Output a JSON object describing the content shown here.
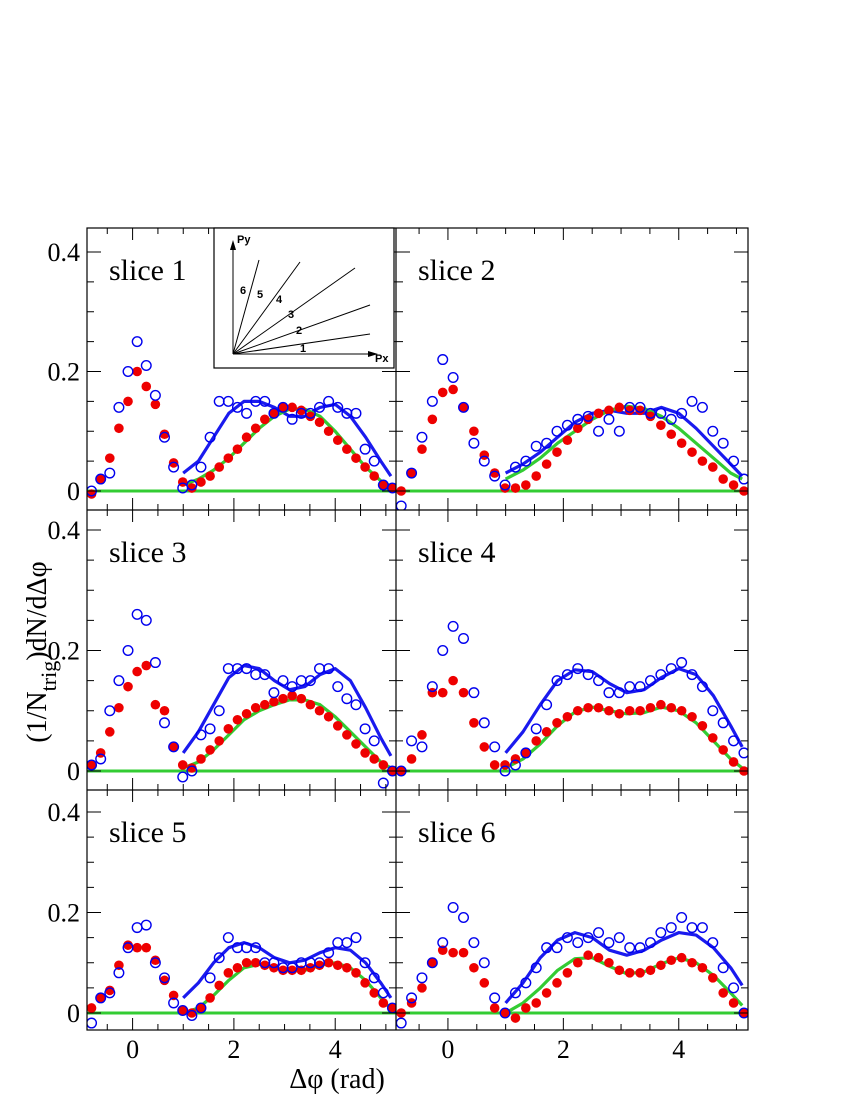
{
  "chart_data": {
    "type": "scatter",
    "layout": "3 rows x 2 columns of panels sharing axes",
    "xlabel": "Δφ (rad)",
    "ylabel_parts": {
      "pre": "(1/N",
      "sub": "trig",
      "post": ")dN/dΔφ"
    },
    "xlim": [
      -0.9,
      5.2
    ],
    "ylim": [
      -0.035,
      0.43
    ],
    "xticks": [
      0,
      2,
      4
    ],
    "yticks": [
      0,
      0.2,
      0.4
    ],
    "ytick_labels": [
      "0",
      "0.2",
      "0.4"
    ],
    "xtick_labels": [
      "0",
      "2",
      "4"
    ],
    "colors": {
      "open_markers": "#0000ee",
      "filled_markers": "#ee0000",
      "blue_curve": "#1a1aee",
      "green_curve": "#33cc33"
    },
    "inset": {
      "y_label": "Py",
      "x_label": "Px",
      "ray_labels": [
        "1",
        "2",
        "3",
        "4",
        "5",
        "6"
      ]
    },
    "x": [
      -0.81,
      -0.63,
      -0.45,
      -0.27,
      -0.09,
      0.09,
      0.27,
      0.45,
      0.63,
      0.81,
      0.99,
      1.17,
      1.35,
      1.53,
      1.71,
      1.89,
      2.07,
      2.25,
      2.43,
      2.61,
      2.79,
      2.97,
      3.15,
      3.33,
      3.51,
      3.69,
      3.87,
      4.05,
      4.23,
      4.41,
      4.59,
      4.77,
      4.95,
      5.13
    ],
    "panels": [
      {
        "label": "slice 1",
        "open": [
          0.0,
          0.02,
          0.03,
          0.14,
          0.2,
          0.25,
          0.21,
          0.16,
          0.09,
          0.04,
          0.005,
          0.01,
          0.04,
          0.09,
          0.15,
          0.15,
          0.14,
          0.13,
          0.15,
          0.15,
          0.13,
          0.14,
          0.12,
          0.13,
          0.13,
          0.14,
          0.15,
          0.14,
          0.13,
          0.13,
          0.07,
          0.05,
          0.01,
          0.005
        ],
        "filled": [
          -0.005,
          0.02,
          0.055,
          0.105,
          0.15,
          0.2,
          0.175,
          0.145,
          0.095,
          0.047,
          0.015,
          0.005,
          0.015,
          0.025,
          0.04,
          0.055,
          0.07,
          0.09,
          0.105,
          0.12,
          0.13,
          0.14,
          0.14,
          0.135,
          0.125,
          0.115,
          0.1,
          0.085,
          0.07,
          0.055,
          0.04,
          0.025,
          0.01,
          0.005
        ],
        "blue_curve": {
          "x": [
            1.0,
            1.3,
            1.6,
            1.9,
            2.2,
            2.5,
            2.8,
            3.1,
            3.4,
            3.7,
            4.0,
            4.3,
            4.6,
            4.9,
            5.1
          ],
          "y": [
            0.03,
            0.05,
            0.09,
            0.13,
            0.15,
            0.15,
            0.14,
            0.125,
            0.125,
            0.14,
            0.145,
            0.125,
            0.09,
            0.05,
            0.025
          ]
        },
        "green_curve": {
          "x": [
            1.0,
            1.3,
            1.6,
            1.9,
            2.2,
            2.5,
            2.8,
            3.1,
            3.4,
            3.7,
            4.0,
            4.3,
            4.6,
            4.9,
            5.1
          ],
          "y": [
            0.01,
            0.02,
            0.035,
            0.055,
            0.08,
            0.105,
            0.125,
            0.137,
            0.137,
            0.125,
            0.1,
            0.07,
            0.04,
            0.017,
            0.008
          ]
        }
      },
      {
        "label": "slice 2",
        "open": [
          -0.025,
          0.03,
          0.09,
          0.15,
          0.22,
          0.19,
          0.14,
          0.08,
          0.05,
          0.025,
          0.01,
          0.04,
          0.05,
          0.075,
          0.08,
          0.1,
          0.11,
          0.12,
          0.125,
          0.1,
          0.12,
          0.1,
          0.14,
          0.14,
          0.13,
          0.13,
          0.12,
          0.13,
          0.15,
          0.14,
          0.1,
          0.08,
          0.05,
          0.02
        ],
        "filled": [
          0.0,
          0.03,
          0.07,
          0.12,
          0.165,
          0.17,
          0.14,
          0.1,
          0.06,
          0.03,
          0.005,
          0.005,
          0.01,
          0.025,
          0.045,
          0.065,
          0.085,
          0.105,
          0.12,
          0.13,
          0.135,
          0.14,
          0.135,
          0.135,
          0.125,
          0.11,
          0.095,
          0.08,
          0.065,
          0.05,
          0.04,
          0.02,
          0.01,
          0.0
        ],
        "blue_curve": {
          "x": [
            1.0,
            1.3,
            1.6,
            1.9,
            2.2,
            2.5,
            2.8,
            3.1,
            3.4,
            3.7,
            4.0,
            4.3,
            4.6,
            4.9,
            5.1
          ],
          "y": [
            0.03,
            0.045,
            0.065,
            0.09,
            0.115,
            0.13,
            0.135,
            0.13,
            0.13,
            0.14,
            0.13,
            0.105,
            0.075,
            0.045,
            0.025
          ]
        },
        "green_curve": {
          "x": [
            1.0,
            1.3,
            1.6,
            1.9,
            2.2,
            2.5,
            2.8,
            3.1,
            3.4,
            3.7,
            4.0,
            4.3,
            4.6,
            4.9,
            5.1
          ],
          "y": [
            0.02,
            0.035,
            0.055,
            0.08,
            0.1,
            0.12,
            0.135,
            0.142,
            0.138,
            0.125,
            0.105,
            0.08,
            0.055,
            0.03,
            0.02
          ]
        }
      },
      {
        "label": "slice 3",
        "open": [
          0.01,
          0.02,
          0.1,
          0.15,
          0.2,
          0.26,
          0.25,
          0.18,
          0.08,
          0.04,
          -0.01,
          0.0,
          0.06,
          0.07,
          0.1,
          0.17,
          0.17,
          0.17,
          0.16,
          0.16,
          0.13,
          0.15,
          0.14,
          0.15,
          0.15,
          0.17,
          0.17,
          0.14,
          0.12,
          0.11,
          0.07,
          0.05,
          -0.02,
          0.0
        ],
        "filled": [
          0.01,
          0.03,
          0.065,
          0.105,
          0.14,
          0.165,
          0.175,
          0.11,
          0.1,
          0.04,
          0.01,
          0.005,
          0.02,
          0.035,
          0.05,
          0.07,
          0.085,
          0.095,
          0.105,
          0.11,
          0.115,
          0.12,
          0.125,
          0.12,
          0.11,
          0.1,
          0.09,
          0.075,
          0.06,
          0.045,
          0.03,
          0.02,
          0.01,
          0.0
        ],
        "blue_curve": {
          "x": [
            1.0,
            1.3,
            1.6,
            1.9,
            2.2,
            2.5,
            2.8,
            3.1,
            3.4,
            3.7,
            4.0,
            4.3,
            4.6,
            4.9,
            5.1
          ],
          "y": [
            0.03,
            0.065,
            0.11,
            0.155,
            0.175,
            0.17,
            0.15,
            0.135,
            0.14,
            0.16,
            0.17,
            0.15,
            0.105,
            0.055,
            0.025
          ]
        },
        "green_curve": {
          "x": [
            1.0,
            1.3,
            1.6,
            1.9,
            2.2,
            2.5,
            2.8,
            3.1,
            3.4,
            3.7,
            4.0,
            4.3,
            4.6,
            4.9,
            5.1
          ],
          "y": [
            0.005,
            0.015,
            0.035,
            0.06,
            0.085,
            0.1,
            0.11,
            0.118,
            0.118,
            0.11,
            0.09,
            0.065,
            0.04,
            0.015,
            0.005
          ]
        }
      },
      {
        "label": "slice 4",
        "open": [
          0.0,
          0.05,
          0.04,
          0.14,
          0.2,
          0.24,
          0.22,
          0.13,
          0.08,
          0.04,
          0.0,
          0.01,
          0.03,
          0.07,
          0.11,
          0.15,
          0.16,
          0.17,
          0.16,
          0.15,
          0.13,
          0.13,
          0.14,
          0.14,
          0.15,
          0.16,
          0.17,
          0.18,
          0.16,
          0.14,
          0.1,
          0.08,
          0.05,
          0.03
        ],
        "filled": [
          0.0,
          0.02,
          0.06,
          0.13,
          0.13,
          0.15,
          0.13,
          0.08,
          0.04,
          0.01,
          0.01,
          0.02,
          0.03,
          0.05,
          0.065,
          0.08,
          0.09,
          0.1,
          0.105,
          0.105,
          0.1,
          0.095,
          0.1,
          0.1,
          0.105,
          0.11,
          0.105,
          0.1,
          0.09,
          0.075,
          0.055,
          0.035,
          0.015,
          0.0
        ],
        "blue_curve": {
          "x": [
            1.0,
            1.3,
            1.6,
            1.9,
            2.2,
            2.5,
            2.8,
            3.1,
            3.4,
            3.7,
            4.0,
            4.3,
            4.6,
            4.9,
            5.1
          ],
          "y": [
            0.03,
            0.065,
            0.11,
            0.15,
            0.168,
            0.165,
            0.145,
            0.13,
            0.135,
            0.155,
            0.17,
            0.16,
            0.125,
            0.075,
            0.04
          ]
        },
        "green_curve": {
          "x": [
            1.0,
            1.3,
            1.6,
            1.9,
            2.2,
            2.5,
            2.8,
            3.1,
            3.4,
            3.7,
            4.0,
            4.3,
            4.6,
            4.9,
            5.1
          ],
          "y": [
            0.005,
            0.02,
            0.045,
            0.075,
            0.098,
            0.106,
            0.1,
            0.095,
            0.097,
            0.106,
            0.1,
            0.08,
            0.05,
            0.02,
            0.005
          ]
        }
      },
      {
        "label": "slice 5",
        "open": [
          -0.02,
          0.03,
          0.04,
          0.08,
          0.13,
          0.17,
          0.175,
          0.1,
          0.07,
          0.02,
          0.005,
          -0.005,
          0.01,
          0.07,
          0.11,
          0.15,
          0.13,
          0.13,
          0.13,
          0.1,
          0.1,
          0.09,
          0.09,
          0.1,
          0.1,
          0.1,
          0.12,
          0.14,
          0.14,
          0.15,
          0.1,
          0.07,
          0.04,
          0.01
        ],
        "filled": [
          0.01,
          0.03,
          0.045,
          0.095,
          0.135,
          0.13,
          0.13,
          0.105,
          0.065,
          0.035,
          0.005,
          0.0,
          0.01,
          0.03,
          0.055,
          0.08,
          0.09,
          0.1,
          0.1,
          0.095,
          0.09,
          0.085,
          0.085,
          0.085,
          0.09,
          0.095,
          0.1,
          0.095,
          0.09,
          0.08,
          0.06,
          0.04,
          0.02,
          0.01
        ],
        "blue_curve": {
          "x": [
            1.0,
            1.3,
            1.6,
            1.9,
            2.2,
            2.5,
            2.8,
            3.1,
            3.4,
            3.7,
            4.0,
            4.3,
            4.6,
            4.9,
            5.1
          ],
          "y": [
            0.03,
            0.06,
            0.1,
            0.13,
            0.14,
            0.13,
            0.11,
            0.1,
            0.105,
            0.12,
            0.13,
            0.125,
            0.1,
            0.06,
            0.03
          ]
        },
        "green_curve": {
          "x": [
            1.0,
            1.3,
            1.6,
            1.9,
            2.2,
            2.5,
            2.8,
            3.1,
            3.4,
            3.7,
            4.0,
            4.3,
            4.6,
            4.9,
            5.1
          ],
          "y": [
            0.0,
            0.01,
            0.035,
            0.065,
            0.09,
            0.097,
            0.09,
            0.083,
            0.085,
            0.095,
            0.1,
            0.09,
            0.065,
            0.03,
            0.008
          ]
        }
      },
      {
        "label": "slice 6",
        "open": [
          -0.02,
          0.03,
          0.07,
          0.1,
          0.14,
          0.21,
          0.19,
          0.14,
          0.1,
          0.03,
          0.0,
          0.04,
          0.06,
          0.09,
          0.13,
          0.13,
          0.15,
          0.14,
          0.15,
          0.16,
          0.14,
          0.15,
          0.13,
          0.13,
          0.14,
          0.16,
          0.17,
          0.19,
          0.17,
          0.17,
          0.14,
          0.09,
          0.05,
          0.0
        ],
        "filled": [
          0.0,
          0.02,
          0.05,
          0.1,
          0.125,
          0.12,
          0.12,
          0.09,
          0.06,
          0.01,
          0.0,
          -0.01,
          0.01,
          0.02,
          0.04,
          0.06,
          0.08,
          0.1,
          0.115,
          0.11,
          0.1,
          0.085,
          0.08,
          0.08,
          0.085,
          0.095,
          0.105,
          0.11,
          0.1,
          0.09,
          0.07,
          0.04,
          0.02,
          0.0
        ],
        "blue_curve": {
          "x": [
            1.0,
            1.3,
            1.6,
            1.9,
            2.2,
            2.5,
            2.8,
            3.1,
            3.4,
            3.7,
            4.0,
            4.3,
            4.6,
            4.9,
            5.1
          ],
          "y": [
            0.02,
            0.06,
            0.11,
            0.145,
            0.16,
            0.15,
            0.125,
            0.115,
            0.125,
            0.145,
            0.16,
            0.155,
            0.13,
            0.09,
            0.055
          ]
        },
        "green_curve": {
          "x": [
            1.0,
            1.3,
            1.6,
            1.9,
            2.2,
            2.5,
            2.8,
            3.1,
            3.4,
            3.7,
            4.0,
            4.3,
            4.6,
            4.9,
            5.1
          ],
          "y": [
            0.0,
            0.02,
            0.05,
            0.085,
            0.108,
            0.11,
            0.093,
            0.078,
            0.082,
            0.098,
            0.11,
            0.1,
            0.075,
            0.04,
            0.015
          ]
        }
      }
    ]
  }
}
